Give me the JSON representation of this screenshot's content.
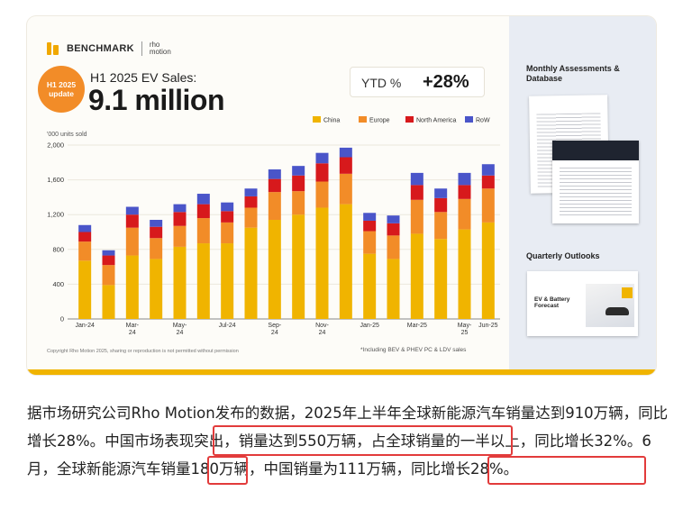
{
  "card": {
    "brand": "BENCHMARK",
    "partner_line1": "rho",
    "partner_line2": "motion",
    "badge_line1": "H1 2025",
    "badge_line2": "update",
    "headline_small": "H1 2025 EV Sales:",
    "headline_big": "9.1 million",
    "ytd_label": "YTD %",
    "ytd_value": "+28%",
    "copyright": "Copyright Rho Motion 2025, sharing or reproduction is not permitted without permission",
    "footnote": "*Including BEV & PHEV PC & LDV sales",
    "side_title_1": "Monthly Assessments & Database",
    "side_title_2": "Quarterly Outlooks",
    "outlook_doc_title_1": "EV & Battery",
    "outlook_doc_title_2": "Forecast"
  },
  "chart_data": {
    "type": "bar",
    "stacked": true,
    "unit_label": "'000 units sold",
    "categories": [
      "Jan-24",
      "Feb-24",
      "Mar-24",
      "Apr-24",
      "May-24",
      "Jun-24",
      "Jul-24",
      "Aug-24",
      "Sep-24",
      "Oct-24",
      "Nov-24",
      "Dec-24",
      "Jan-25",
      "Feb-25",
      "Mar-25",
      "Apr-25",
      "May-25",
      "Jun-25"
    ],
    "tick_labels": [
      {
        "index": 0,
        "line1": "Jan-24",
        "line2": ""
      },
      {
        "index": 2,
        "line1": "Mar-",
        "line2": "24"
      },
      {
        "index": 4,
        "line1": "May-",
        "line2": "24"
      },
      {
        "index": 6,
        "line1": "Jul-24",
        "line2": ""
      },
      {
        "index": 8,
        "line1": "Sep-",
        "line2": "24"
      },
      {
        "index": 10,
        "line1": "Nov-",
        "line2": "24"
      },
      {
        "index": 12,
        "line1": "Jan-25",
        "line2": ""
      },
      {
        "index": 14,
        "line1": "Mar-25",
        "line2": ""
      },
      {
        "index": 16,
        "line1": "May-",
        "line2": "25"
      },
      {
        "index": 17,
        "line1": "Jun-25",
        "line2": ""
      }
    ],
    "series": [
      {
        "name": "China",
        "color": "#f0b400",
        "values": [
          670,
          390,
          730,
          690,
          830,
          870,
          870,
          1050,
          1140,
          1200,
          1280,
          1320,
          750,
          690,
          980,
          920,
          1030,
          1110
        ]
      },
      {
        "name": "Europe",
        "color": "#f28c28",
        "values": [
          220,
          230,
          320,
          240,
          240,
          290,
          240,
          230,
          320,
          270,
          300,
          350,
          260,
          270,
          390,
          310,
          350,
          390
        ]
      },
      {
        "name": "North America",
        "color": "#d7191c",
        "values": [
          110,
          110,
          150,
          130,
          160,
          160,
          130,
          130,
          150,
          180,
          210,
          190,
          120,
          140,
          170,
          160,
          160,
          150
        ]
      },
      {
        "name": "RoW",
        "color": "#4a55c9",
        "values": [
          80,
          60,
          90,
          80,
          90,
          120,
          100,
          90,
          110,
          110,
          120,
          110,
          90,
          90,
          140,
          110,
          140,
          130
        ]
      }
    ],
    "ylim": [
      0,
      2000
    ],
    "yticks": [
      0,
      400,
      800,
      1200,
      1600,
      2000
    ],
    "ytick_labels": [
      "0",
      "400",
      "800",
      "1,200",
      "1,600",
      "2,000"
    ],
    "grid": true,
    "legend_position": "top-right"
  },
  "article": {
    "segments": [
      "据市场研究公司Rho Motion发布的数据，2025年上半年全球新能源汽车销量达到910万辆，同比增长28%。",
      "中国市场表现突出，销量达到550万辆",
      "，占全球销量的一半以上，同比增长32%。",
      "6月",
      "，全球新能源汽车销量180万辆，",
      "中国销量为111万辆",
      "，同比增长28%。"
    ]
  },
  "colors": {
    "highlight_box": "#e23b3b",
    "accent_yellow": "#f0b400",
    "badge_orange": "#f28c28"
  }
}
